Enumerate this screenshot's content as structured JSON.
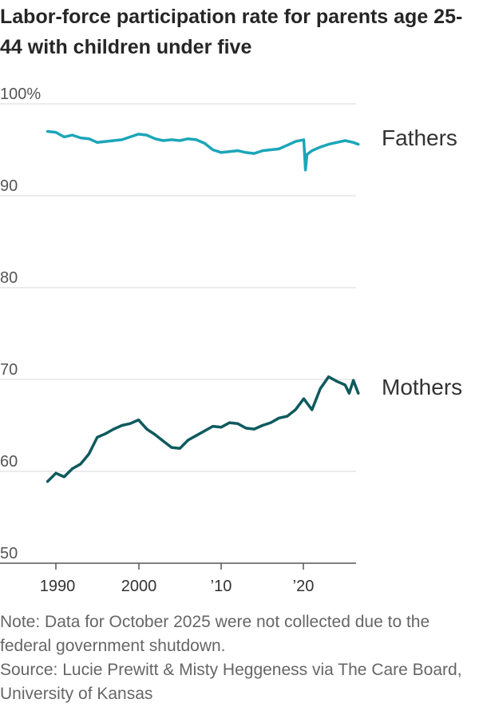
{
  "title": "Labor-force participation rate for parents age 25-44 with children under five",
  "note": "Note: Data for October 2025 were not collected due to the federal government shutdown.",
  "source": "Source: Lucie Prewitt & Misty Heggeness via The Care Board, University of Kansas",
  "chart_data": {
    "type": "line",
    "title": "Labor-force participation rate for parents age 25-44 with children under five",
    "xlabel": "",
    "ylabel": "",
    "ylim": [
      50,
      100
    ],
    "xlim": [
      1988,
      2026.7
    ],
    "y_ticks": [
      "100%",
      "90",
      "80",
      "70",
      "60",
      "50"
    ],
    "x_ticks": [
      "1990",
      "2000",
      "’10",
      "’20"
    ],
    "grid": true,
    "legend": "labels at line ends (right)",
    "series": [
      {
        "name": "Fathers",
        "color": "#1ba6b9",
        "x": [
          1989,
          1990,
          1991,
          1992,
          1993,
          1994,
          1995,
          1996,
          1997,
          1998,
          1999,
          2000,
          2001,
          2002,
          2003,
          2004,
          2005,
          2006,
          2007,
          2008,
          2009,
          2010,
          2011,
          2012,
          2013,
          2014,
          2015,
          2016,
          2017,
          2018,
          2019,
          2020,
          2020.2,
          2020.4,
          2021,
          2022,
          2023,
          2024,
          2025,
          2026,
          2026.6
        ],
        "values": [
          97.0,
          96.9,
          96.4,
          96.6,
          96.3,
          96.2,
          95.8,
          95.9,
          96.0,
          96.1,
          96.4,
          96.7,
          96.6,
          96.2,
          96.0,
          96.1,
          96.0,
          96.2,
          96.1,
          95.7,
          95.0,
          94.7,
          94.8,
          94.9,
          94.7,
          94.6,
          94.9,
          95.0,
          95.1,
          95.5,
          95.9,
          96.1,
          92.8,
          94.5,
          94.9,
          95.3,
          95.6,
          95.8,
          96.0,
          95.8,
          95.6
        ]
      },
      {
        "name": "Mothers",
        "color": "#0e5a5e",
        "x": [
          1989,
          1990,
          1991,
          1992,
          1993,
          1994,
          1995,
          1996,
          1997,
          1998,
          1999,
          2000,
          2001,
          2002,
          2003,
          2004,
          2005,
          2006,
          2007,
          2008,
          2009,
          2010,
          2011,
          2012,
          2013,
          2014,
          2015,
          2016,
          2017,
          2018,
          2019,
          2020,
          2021,
          2022,
          2023,
          2024,
          2025,
          2025.5,
          2026,
          2026.6
        ],
        "values": [
          58.9,
          59.8,
          59.4,
          60.3,
          60.8,
          61.9,
          63.7,
          64.1,
          64.6,
          65.0,
          65.2,
          65.6,
          64.6,
          64.0,
          63.3,
          62.6,
          62.5,
          63.4,
          63.9,
          64.4,
          64.9,
          64.8,
          65.3,
          65.2,
          64.7,
          64.6,
          65.0,
          65.3,
          65.8,
          66.0,
          66.7,
          67.9,
          66.7,
          69.0,
          70.3,
          69.8,
          69.4,
          68.5,
          69.9,
          68.5
        ]
      }
    ]
  }
}
